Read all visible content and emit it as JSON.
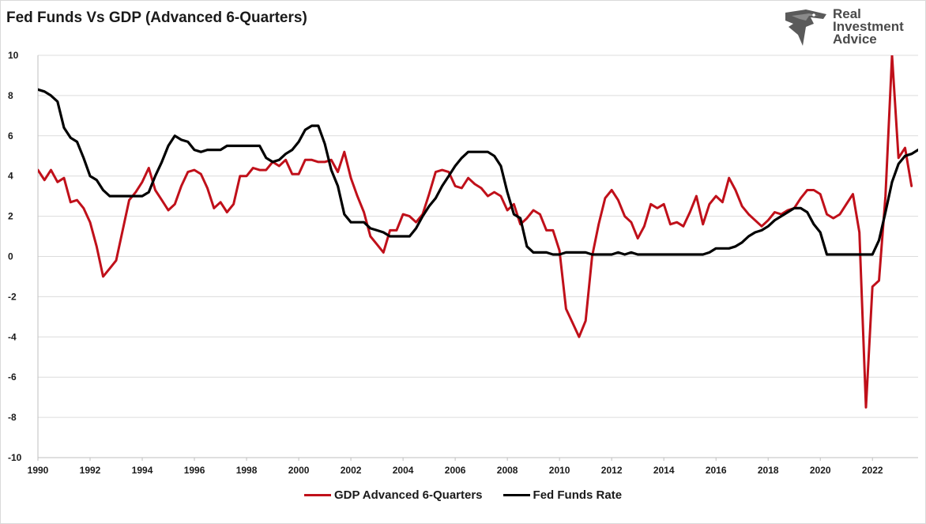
{
  "chart_data": {
    "type": "line",
    "title": "Fed Funds Vs GDP (Advanced 6-Quarters)",
    "xlabel": "",
    "ylabel": "",
    "xlim": [
      1990,
      2023.75
    ],
    "ylim": [
      -10,
      10
    ],
    "y_ticks": [
      "10",
      "8",
      "6",
      "4",
      "2",
      "0",
      "-2",
      "-4",
      "-6",
      "-8",
      "-10"
    ],
    "x_ticks": [
      "1990",
      "1992",
      "1994",
      "1996",
      "1998",
      "2000",
      "2002",
      "2004",
      "2006",
      "2008",
      "2010",
      "2012",
      "2014",
      "2016",
      "2018",
      "2020",
      "2022"
    ],
    "grid": "horizontal",
    "legend_position": "bottom",
    "series": [
      {
        "name": "GDP Advanced 6-Quarters",
        "color": "#c0101a",
        "points": [
          [
            1990,
            4.3
          ],
          [
            1990.25,
            3.8
          ],
          [
            1990.5,
            4.3
          ],
          [
            1990.75,
            3.7
          ],
          [
            1991,
            3.9
          ],
          [
            1991.25,
            2.7
          ],
          [
            1991.5,
            2.8
          ],
          [
            1991.75,
            2.4
          ],
          [
            1992,
            1.7
          ],
          [
            1992.25,
            0.5
          ],
          [
            1992.5,
            -1.0
          ],
          [
            1992.75,
            -0.6
          ],
          [
            1993,
            -0.2
          ],
          [
            1993.5,
            2.8
          ],
          [
            1993.75,
            3.2
          ],
          [
            1994,
            3.7
          ],
          [
            1994.25,
            4.4
          ],
          [
            1994.5,
            3.3
          ],
          [
            1994.75,
            2.8
          ],
          [
            1995,
            2.3
          ],
          [
            1995.25,
            2.6
          ],
          [
            1995.5,
            3.5
          ],
          [
            1995.75,
            4.2
          ],
          [
            1996,
            4.3
          ],
          [
            1996.25,
            4.1
          ],
          [
            1996.5,
            3.4
          ],
          [
            1996.75,
            2.4
          ],
          [
            1997,
            2.7
          ],
          [
            1997.25,
            2.2
          ],
          [
            1997.5,
            2.6
          ],
          [
            1997.75,
            4.0
          ],
          [
            1998,
            4.0
          ],
          [
            1998.25,
            4.4
          ],
          [
            1998.5,
            4.3
          ],
          [
            1998.75,
            4.3
          ],
          [
            1999,
            4.7
          ],
          [
            1999.25,
            4.5
          ],
          [
            1999.5,
            4.8
          ],
          [
            1999.75,
            4.1
          ],
          [
            2000,
            4.1
          ],
          [
            2000.25,
            4.8
          ],
          [
            2000.5,
            4.8
          ],
          [
            2000.75,
            4.7
          ],
          [
            2001,
            4.7
          ],
          [
            2001.25,
            4.8
          ],
          [
            2001.5,
            4.2
          ],
          [
            2001.75,
            5.2
          ],
          [
            2002,
            3.9
          ],
          [
            2002.25,
            3.0
          ],
          [
            2002.5,
            2.2
          ],
          [
            2002.75,
            1.0
          ],
          [
            2003,
            0.6
          ],
          [
            2003.25,
            0.2
          ],
          [
            2003.5,
            1.3
          ],
          [
            2003.75,
            1.3
          ],
          [
            2004,
            2.1
          ],
          [
            2004.25,
            2.0
          ],
          [
            2004.5,
            1.7
          ],
          [
            2004.75,
            2.1
          ],
          [
            2005,
            3.1
          ],
          [
            2005.25,
            4.2
          ],
          [
            2005.5,
            4.3
          ],
          [
            2005.75,
            4.2
          ],
          [
            2006,
            3.5
          ],
          [
            2006.25,
            3.4
          ],
          [
            2006.5,
            3.9
          ],
          [
            2006.75,
            3.6
          ],
          [
            2007,
            3.4
          ],
          [
            2007.25,
            3.0
          ],
          [
            2007.5,
            3.2
          ],
          [
            2007.75,
            3.0
          ],
          [
            2008,
            2.3
          ],
          [
            2008.25,
            2.6
          ],
          [
            2008.5,
            1.6
          ],
          [
            2008.75,
            1.9
          ],
          [
            2009,
            2.3
          ],
          [
            2009.25,
            2.1
          ],
          [
            2009.5,
            1.3
          ],
          [
            2009.75,
            1.3
          ],
          [
            2010,
            0.3
          ],
          [
            2010.25,
            -2.6
          ],
          [
            2010.5,
            -3.3
          ],
          [
            2010.75,
            -4.0
          ],
          [
            2011,
            -3.2
          ],
          [
            2011.25,
            0.0
          ],
          [
            2011.5,
            1.6
          ],
          [
            2011.75,
            2.9
          ],
          [
            2012,
            3.3
          ],
          [
            2012.25,
            2.8
          ],
          [
            2012.5,
            2.0
          ],
          [
            2012.75,
            1.7
          ],
          [
            2013,
            0.9
          ],
          [
            2013.25,
            1.5
          ],
          [
            2013.5,
            2.6
          ],
          [
            2013.75,
            2.4
          ],
          [
            2014,
            2.6
          ],
          [
            2014.25,
            1.6
          ],
          [
            2014.5,
            1.7
          ],
          [
            2014.75,
            1.5
          ],
          [
            2015,
            2.2
          ],
          [
            2015.25,
            3.0
          ],
          [
            2015.5,
            1.6
          ],
          [
            2015.75,
            2.6
          ],
          [
            2016,
            3.0
          ],
          [
            2016.25,
            2.7
          ],
          [
            2016.5,
            3.9
          ],
          [
            2016.75,
            3.3
          ],
          [
            2017,
            2.5
          ],
          [
            2017.25,
            2.1
          ],
          [
            2017.5,
            1.8
          ],
          [
            2017.75,
            1.5
          ],
          [
            2018,
            1.8
          ],
          [
            2018.25,
            2.2
          ],
          [
            2018.5,
            2.1
          ],
          [
            2018.75,
            2.3
          ],
          [
            2019,
            2.4
          ],
          [
            2019.25,
            2.9
          ],
          [
            2019.5,
            3.3
          ],
          [
            2019.75,
            3.3
          ],
          [
            2020,
            3.1
          ],
          [
            2020.25,
            2.1
          ],
          [
            2020.5,
            1.9
          ],
          [
            2020.75,
            2.1
          ],
          [
            2021,
            2.6
          ],
          [
            2021.25,
            3.1
          ],
          [
            2021.5,
            1.2
          ],
          [
            2021.75,
            -7.5
          ],
          [
            2022,
            -1.5
          ],
          [
            2022.25,
            -1.2
          ],
          [
            2022.5,
            3.0
          ],
          [
            2022.75,
            10.0
          ],
          [
            2023,
            4.9
          ],
          [
            2023.25,
            5.4
          ],
          [
            2023.5,
            3.5
          ]
        ]
      },
      {
        "name": "Fed Funds Rate",
        "color": "#000000",
        "points": [
          [
            1990,
            8.3
          ],
          [
            1990.25,
            8.2
          ],
          [
            1990.5,
            8.0
          ],
          [
            1990.75,
            7.7
          ],
          [
            1991,
            6.4
          ],
          [
            1991.25,
            5.9
          ],
          [
            1991.5,
            5.7
          ],
          [
            1991.75,
            4.9
          ],
          [
            1992,
            4.0
          ],
          [
            1992.25,
            3.8
          ],
          [
            1992.5,
            3.3
          ],
          [
            1992.75,
            3.0
          ],
          [
            1993,
            3.0
          ],
          [
            1993.25,
            3.0
          ],
          [
            1993.5,
            3.0
          ],
          [
            1993.75,
            3.0
          ],
          [
            1994,
            3.0
          ],
          [
            1994.25,
            3.2
          ],
          [
            1994.5,
            4.0
          ],
          [
            1994.75,
            4.7
          ],
          [
            1995,
            5.5
          ],
          [
            1995.25,
            6.0
          ],
          [
            1995.5,
            5.8
          ],
          [
            1995.75,
            5.7
          ],
          [
            1996,
            5.3
          ],
          [
            1996.25,
            5.2
          ],
          [
            1996.5,
            5.3
          ],
          [
            1996.75,
            5.3
          ],
          [
            1997,
            5.3
          ],
          [
            1997.25,
            5.5
          ],
          [
            1997.5,
            5.5
          ],
          [
            1997.75,
            5.5
          ],
          [
            1998,
            5.5
          ],
          [
            1998.25,
            5.5
          ],
          [
            1998.5,
            5.5
          ],
          [
            1998.75,
            4.9
          ],
          [
            1999,
            4.7
          ],
          [
            1999.25,
            4.8
          ],
          [
            1999.5,
            5.1
          ],
          [
            1999.75,
            5.3
          ],
          [
            2000,
            5.7
          ],
          [
            2000.25,
            6.3
          ],
          [
            2000.5,
            6.5
          ],
          [
            2000.75,
            6.5
          ],
          [
            2001,
            5.6
          ],
          [
            2001.25,
            4.3
          ],
          [
            2001.5,
            3.5
          ],
          [
            2001.75,
            2.1
          ],
          [
            2002,
            1.7
          ],
          [
            2002.25,
            1.7
          ],
          [
            2002.5,
            1.7
          ],
          [
            2002.75,
            1.4
          ],
          [
            2003,
            1.3
          ],
          [
            2003.25,
            1.2
          ],
          [
            2003.5,
            1.0
          ],
          [
            2003.75,
            1.0
          ],
          [
            2004,
            1.0
          ],
          [
            2004.25,
            1.0
          ],
          [
            2004.5,
            1.4
          ],
          [
            2004.75,
            2.0
          ],
          [
            2005,
            2.5
          ],
          [
            2005.25,
            2.9
          ],
          [
            2005.5,
            3.5
          ],
          [
            2005.75,
            4.0
          ],
          [
            2006,
            4.5
          ],
          [
            2006.25,
            4.9
          ],
          [
            2006.5,
            5.2
          ],
          [
            2006.75,
            5.2
          ],
          [
            2007,
            5.2
          ],
          [
            2007.25,
            5.2
          ],
          [
            2007.5,
            5.0
          ],
          [
            2007.75,
            4.5
          ],
          [
            2008,
            3.2
          ],
          [
            2008.25,
            2.1
          ],
          [
            2008.5,
            1.9
          ],
          [
            2008.75,
            0.5
          ],
          [
            2009,
            0.2
          ],
          [
            2009.25,
            0.2
          ],
          [
            2009.5,
            0.2
          ],
          [
            2009.75,
            0.1
          ],
          [
            2010,
            0.1
          ],
          [
            2010.25,
            0.2
          ],
          [
            2010.5,
            0.2
          ],
          [
            2010.75,
            0.2
          ],
          [
            2011,
            0.2
          ],
          [
            2011.25,
            0.1
          ],
          [
            2011.5,
            0.1
          ],
          [
            2011.75,
            0.1
          ],
          [
            2012,
            0.1
          ],
          [
            2012.25,
            0.2
          ],
          [
            2012.5,
            0.1
          ],
          [
            2012.75,
            0.2
          ],
          [
            2013,
            0.1
          ],
          [
            2013.25,
            0.1
          ],
          [
            2013.5,
            0.1
          ],
          [
            2013.75,
            0.1
          ],
          [
            2014,
            0.1
          ],
          [
            2014.25,
            0.1
          ],
          [
            2014.5,
            0.1
          ],
          [
            2014.75,
            0.1
          ],
          [
            2015,
            0.1
          ],
          [
            2015.25,
            0.1
          ],
          [
            2015.5,
            0.1
          ],
          [
            2015.75,
            0.2
          ],
          [
            2016,
            0.4
          ],
          [
            2016.25,
            0.4
          ],
          [
            2016.5,
            0.4
          ],
          [
            2016.75,
            0.5
          ],
          [
            2017,
            0.7
          ],
          [
            2017.25,
            1.0
          ],
          [
            2017.5,
            1.2
          ],
          [
            2017.75,
            1.3
          ],
          [
            2018,
            1.5
          ],
          [
            2018.25,
            1.8
          ],
          [
            2018.5,
            2.0
          ],
          [
            2018.75,
            2.2
          ],
          [
            2019,
            2.4
          ],
          [
            2019.25,
            2.4
          ],
          [
            2019.5,
            2.2
          ],
          [
            2019.75,
            1.6
          ],
          [
            2020,
            1.2
          ],
          [
            2020.25,
            0.1
          ],
          [
            2020.5,
            0.1
          ],
          [
            2020.75,
            0.1
          ],
          [
            2021,
            0.1
          ],
          [
            2021.25,
            0.1
          ],
          [
            2021.5,
            0.1
          ],
          [
            2021.75,
            0.1
          ],
          [
            2022,
            0.1
          ],
          [
            2022.25,
            0.8
          ],
          [
            2022.5,
            2.2
          ],
          [
            2022.75,
            3.7
          ],
          [
            2023,
            4.6
          ],
          [
            2023.25,
            5.0
          ],
          [
            2023.5,
            5.1
          ],
          [
            2023.75,
            5.3
          ]
        ]
      }
    ]
  },
  "logo": {
    "lines": [
      "Real",
      "Investment",
      "Advice"
    ],
    "icon": "eagle-icon",
    "color": "#4a4a4a"
  }
}
